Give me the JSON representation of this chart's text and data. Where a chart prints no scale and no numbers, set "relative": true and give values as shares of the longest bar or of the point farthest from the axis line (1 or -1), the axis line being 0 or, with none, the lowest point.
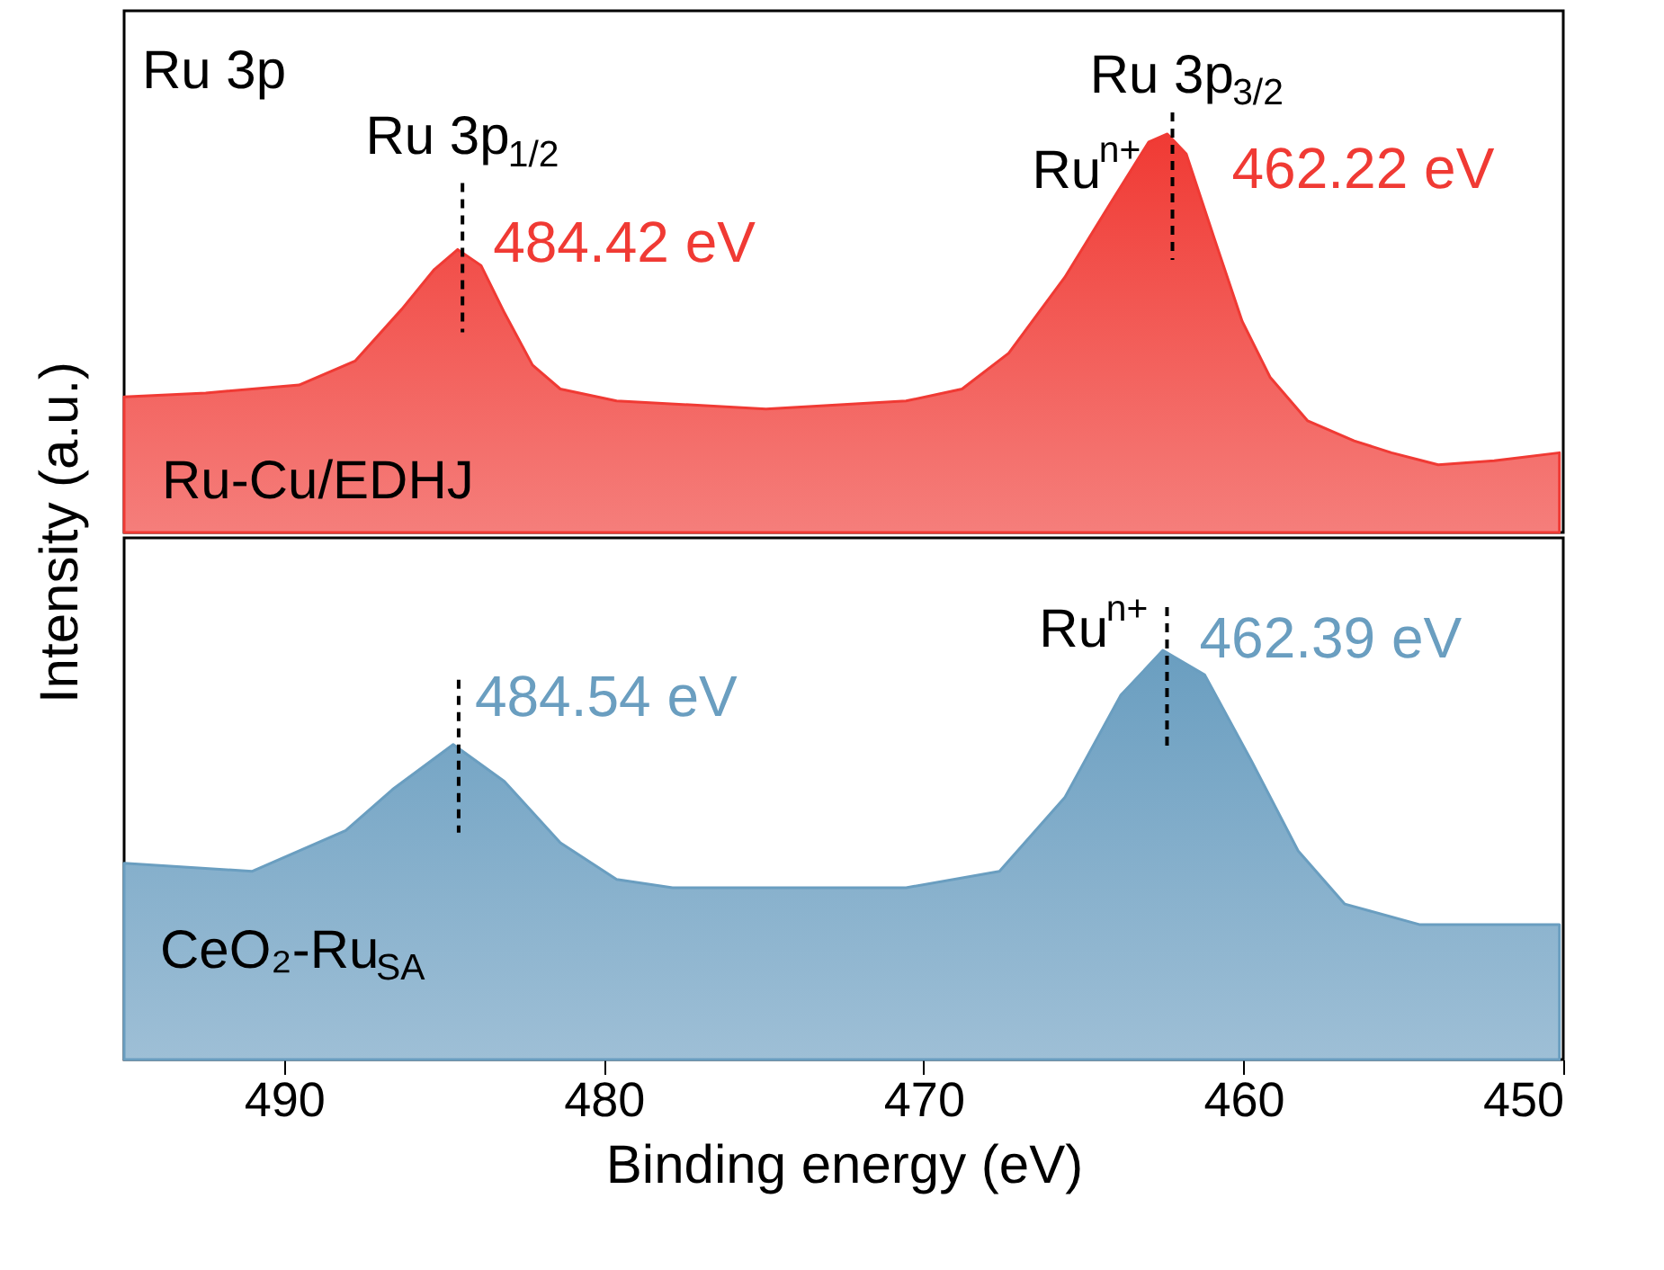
{
  "chart_data": [
    {
      "type": "area",
      "relative": true,
      "xlim": [
        495,
        450
      ],
      "tick_labels": false,
      "ylabel": "Intensity (a.u.)",
      "series": [
        {
          "color": "#f03a34",
          "x": [
            495,
            492.45,
            489.53,
            487.78,
            486.32,
            485.3,
            484.57,
            483.84,
            483.1,
            482.23,
            481.36,
            479.6,
            474.93,
            470.55,
            468.8,
            467.34,
            465.59,
            464.13,
            462.96,
            462.38,
            461.79,
            460.92,
            460.04,
            459.17,
            457.99,
            456.54,
            455.37,
            453.91,
            452.16,
            450.12
          ],
          "values": [
            0.34,
            0.35,
            0.37,
            0.43,
            0.56,
            0.66,
            0.71,
            0.67,
            0.55,
            0.42,
            0.36,
            0.33,
            0.31,
            0.33,
            0.36,
            0.45,
            0.64,
            0.83,
            0.98,
            1,
            0.95,
            0.74,
            0.53,
            0.39,
            0.28,
            0.23,
            0.2,
            0.17,
            0.18,
            0.2
          ]
        }
      ],
      "annotations": [
        "Ru 3p",
        {
          "text": "Ru 3p$_{1/2}$",
          "x": 484.42,
          "y": 0.71
        },
        {
          "text": "484.42 eV",
          "x": 484.42,
          "y": 0.71
        },
        {
          "text": "Ru 3p$_{3/2}$",
          "x": 462.22,
          "y": 1
        },
        {
          "text": "Ru$^{n+}$",
          "x": 462.22,
          "y": 1
        },
        {
          "text": "462.22 eV",
          "x": 462.22,
          "y": 1
        },
        "Ru-Cu/EDHJ"
      ]
    },
    {
      "type": "area",
      "relative": true,
      "xlim": [
        495,
        450
      ],
      "tick_labels": "x",
      "xlabel": "Binding energy (eV)",
      "xticks": [
        490,
        480,
        470,
        460,
        450
      ],
      "series": [
        {
          "color": "#6a9ec0",
          "x": [
            495,
            490.99,
            488.07,
            486.61,
            484.71,
            483.11,
            481.36,
            479.6,
            477.85,
            470.55,
            467.63,
            465.59,
            463.84,
            462.52,
            461.21,
            459.75,
            458.29,
            456.83,
            454.5,
            450.12
          ],
          "values": [
            0.48,
            0.46,
            0.56,
            0.66,
            0.77,
            0.68,
            0.53,
            0.44,
            0.42,
            0.42,
            0.46,
            0.64,
            0.89,
            1,
            0.94,
            0.73,
            0.51,
            0.38,
            0.33,
            0.33
          ]
        }
      ],
      "annotations": [
        {
          "text": "Ru$^{n+}$",
          "x": 462.39,
          "y": 1
        },
        {
          "text": "462.39 eV",
          "x": 462.39,
          "y": 1
        },
        {
          "text": "484.54 eV",
          "x": 484.54,
          "y": 0.77
        },
        "CeO₂-Ru$_{SA}$"
      ]
    }
  ]
}
